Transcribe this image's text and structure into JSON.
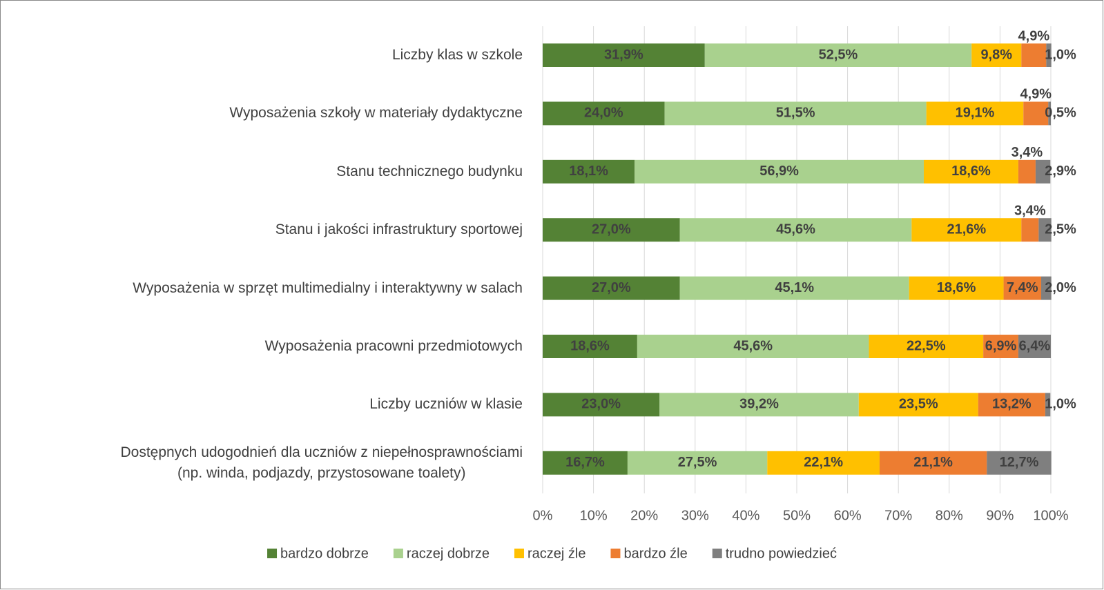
{
  "chart_data": {
    "type": "stacked_barh",
    "categories": [
      "Liczby klas w szkole",
      "Wyposażenia szkoły w materiały dydaktyczne",
      "Stanu technicznego budynku",
      "Stanu i jakości infrastruktury sportowej",
      "Wyposażenia w sprzęt multimedialny i interaktywny w salach",
      "Wyposażenia pracowni przedmiotowych",
      "Liczby uczniów w klasie",
      "Dostępnych udogodnień dla uczniów z niepełnosprawnościami\n(np. winda, podjazdy, przystosowane toalety)"
    ],
    "series": [
      {
        "name": "bardzo dobrze",
        "color": "#548235",
        "values": [
          31.9,
          24.0,
          18.1,
          27.0,
          27.0,
          18.6,
          23.0,
          16.7
        ],
        "value_labels": [
          "31,9%",
          "24,0%",
          "18,1%",
          "27,0%",
          "27,0%",
          "18,6%",
          "23,0%",
          "16,7%"
        ]
      },
      {
        "name": "raczej dobrze",
        "color": "#a9d18e",
        "values": [
          52.5,
          51.5,
          56.9,
          45.6,
          45.1,
          45.6,
          39.2,
          27.5
        ],
        "value_labels": [
          "52,5%",
          "51,5%",
          "56,9%",
          "45,6%",
          "45,1%",
          "45,6%",
          "39,2%",
          "27,5%"
        ]
      },
      {
        "name": "raczej źle",
        "color": "#ffc000",
        "values": [
          9.8,
          19.1,
          18.6,
          21.6,
          18.6,
          22.5,
          23.5,
          22.1
        ],
        "value_labels": [
          "9,8%",
          "19,1%",
          "18,6%",
          "21,6%",
          "18,6%",
          "22,5%",
          "23,5%",
          "22,1%"
        ]
      },
      {
        "name": "bardzo źle",
        "color": "#ed7d31",
        "values": [
          4.9,
          4.9,
          3.4,
          3.4,
          7.4,
          6.9,
          13.2,
          21.1
        ],
        "value_labels": [
          "4,9%",
          "4,9%",
          "3,4%",
          "3,4%",
          "7,4%",
          "6,9%",
          "13,2%",
          "21,1%"
        ]
      },
      {
        "name": "trudno powiedzieć",
        "color": "#7f7f7f",
        "values": [
          1.0,
          0.5,
          2.9,
          2.5,
          2.0,
          6.4,
          1.0,
          12.7
        ],
        "value_labels": [
          "1,0%",
          "0,5%",
          "2,9%",
          "2,5%",
          "2,0%",
          "6,4%",
          "1,0%",
          "12,7%"
        ]
      }
    ],
    "xlim": [
      0,
      100
    ],
    "xticks": [
      {
        "value": 0,
        "label": "0%"
      },
      {
        "value": 10,
        "label": "10%"
      },
      {
        "value": 20,
        "label": "20%"
      },
      {
        "value": 30,
        "label": "30%"
      },
      {
        "value": 40,
        "label": "40%"
      },
      {
        "value": 50,
        "label": "50%"
      },
      {
        "value": 60,
        "label": "60%"
      },
      {
        "value": 70,
        "label": "70%"
      },
      {
        "value": 80,
        "label": "80%"
      },
      {
        "value": 90,
        "label": "90%"
      },
      {
        "value": 100,
        "label": "100%"
      }
    ],
    "grid": true,
    "legend": "bottom"
  }
}
